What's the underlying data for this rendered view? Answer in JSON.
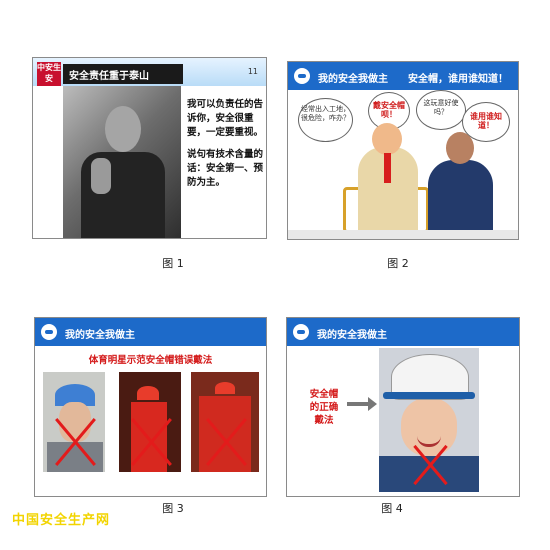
{
  "figures": [
    {
      "caption": "图 1",
      "logo_text": "中安生安",
      "title": "安全责任重于泰山",
      "page_number": "11",
      "paragraphs": [
        "我可以负责任的告诉你，安全很重要，一定要重视。",
        "说句有技术含量的话：安全第一、预防为主。"
      ]
    },
    {
      "caption": "图 2",
      "title": "我的安全我做主",
      "subtitle": "安全帽，谁用谁知道！",
      "bubbles": [
        "经常出入工地，很危险，咋办？",
        "戴安全帽呗！",
        "这玩意好使吗？",
        "谁用谁知道！"
      ]
    },
    {
      "caption": "图 3",
      "title": "我的安全我做主",
      "subtitle": "体育明星示范安全帽错误戴法"
    },
    {
      "caption": "图 4",
      "title": "我的安全我做主",
      "label": "安全帽的正确戴法"
    }
  ],
  "watermark": "中国安全生产网",
  "colors": {
    "header_blue": "#1d6ac9",
    "accent_red": "#d41a1a",
    "watermark_yellow": "#f2d400"
  }
}
